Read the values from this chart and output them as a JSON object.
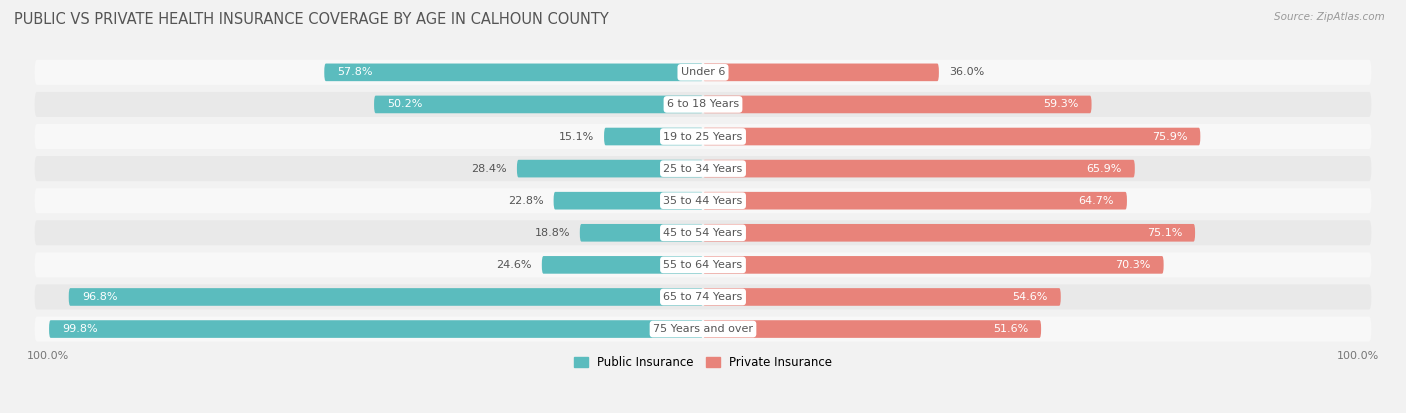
{
  "title": "PUBLIC VS PRIVATE HEALTH INSURANCE COVERAGE BY AGE IN CALHOUN COUNTY",
  "source": "Source: ZipAtlas.com",
  "categories": [
    "Under 6",
    "6 to 18 Years",
    "19 to 25 Years",
    "25 to 34 Years",
    "35 to 44 Years",
    "45 to 54 Years",
    "55 to 64 Years",
    "65 to 74 Years",
    "75 Years and over"
  ],
  "public_values": [
    57.8,
    50.2,
    15.1,
    28.4,
    22.8,
    18.8,
    24.6,
    96.8,
    99.8
  ],
  "private_values": [
    36.0,
    59.3,
    75.9,
    65.9,
    64.7,
    75.1,
    70.3,
    54.6,
    51.6
  ],
  "public_color": "#5bbcbe",
  "private_color": "#e8837a",
  "bg_color": "#f2f2f2",
  "row_colors": [
    "#f8f8f8",
    "#e9e9e9"
  ],
  "title_color": "#555555",
  "label_color_dark": "#555555",
  "label_color_white": "#ffffff",
  "cat_label_color": "#555555",
  "max_value": 100.0,
  "legend_public": "Public Insurance",
  "legend_private": "Private Insurance",
  "title_fontsize": 10.5,
  "label_fontsize": 8,
  "category_fontsize": 8,
  "source_fontsize": 7.5
}
